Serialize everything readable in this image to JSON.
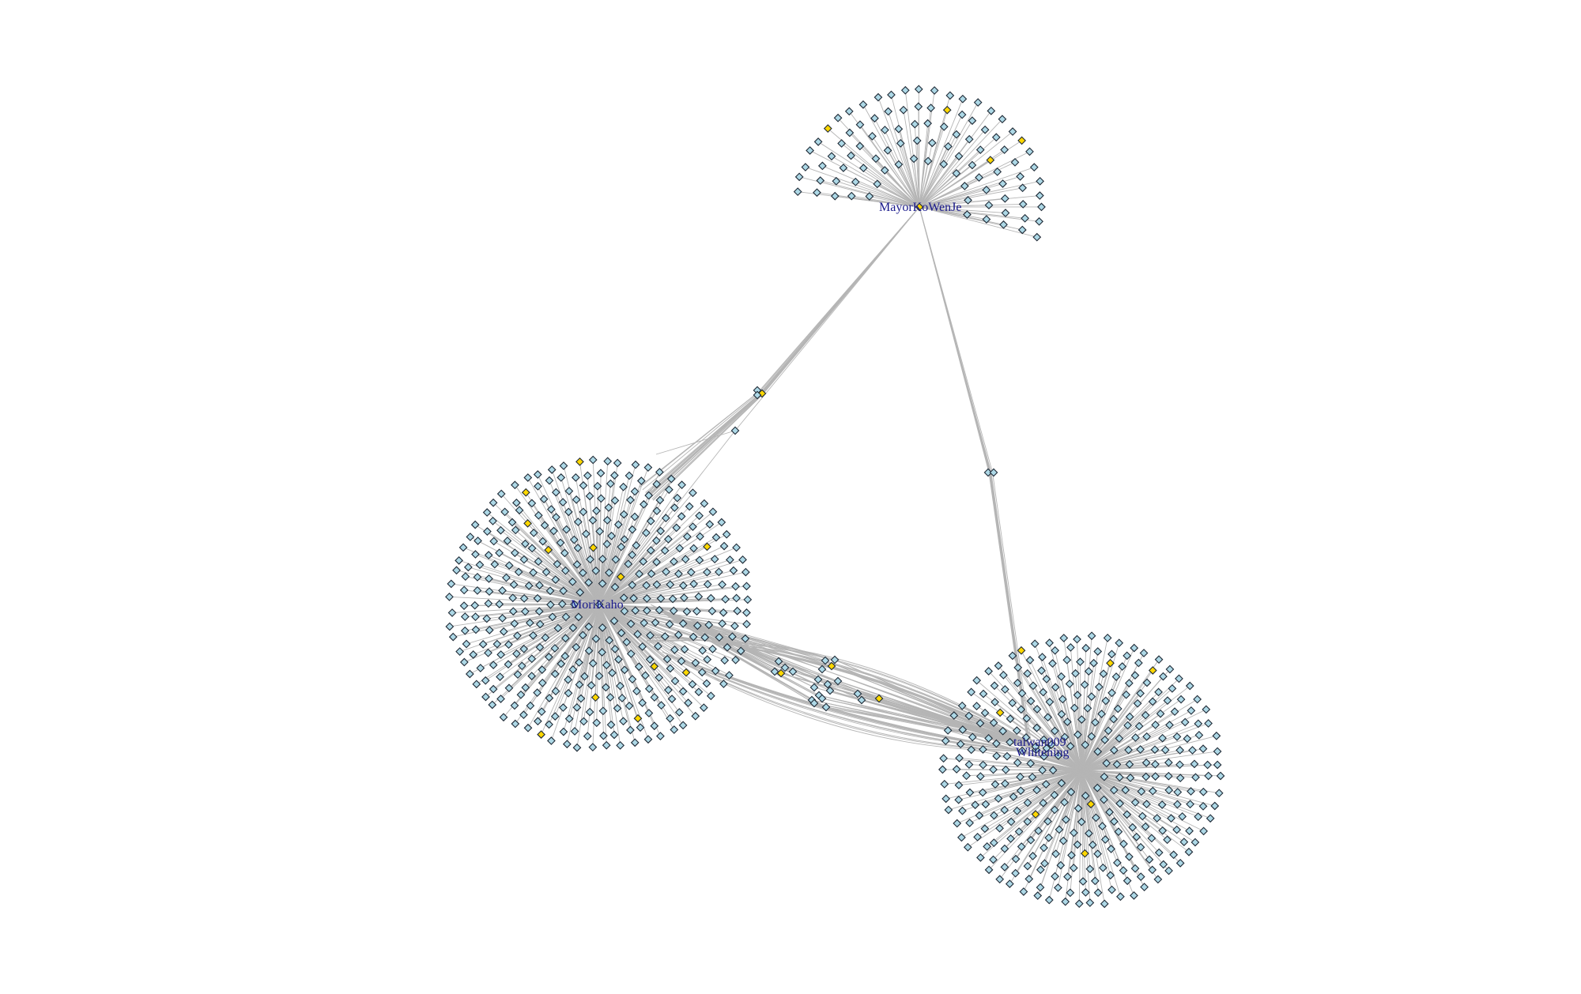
{
  "graph": {
    "hubs": [
      {
        "id": "mayor",
        "label": "MayorKoWenJe"
      },
      {
        "id": "mori",
        "label": "MoriKaho"
      },
      {
        "id": "taiwan",
        "label": "taiwan009"
      },
      {
        "id": "whitening",
        "label": "Whitening"
      }
    ],
    "colors": {
      "leaf_fill": "#add8e6",
      "highlight_fill": "#ffd700",
      "node_stroke": "#1f2a36",
      "edge": "#b5b5b5",
      "label": "#1a1a8c",
      "background": "#ffffff"
    },
    "node_shape": "diamond"
  }
}
